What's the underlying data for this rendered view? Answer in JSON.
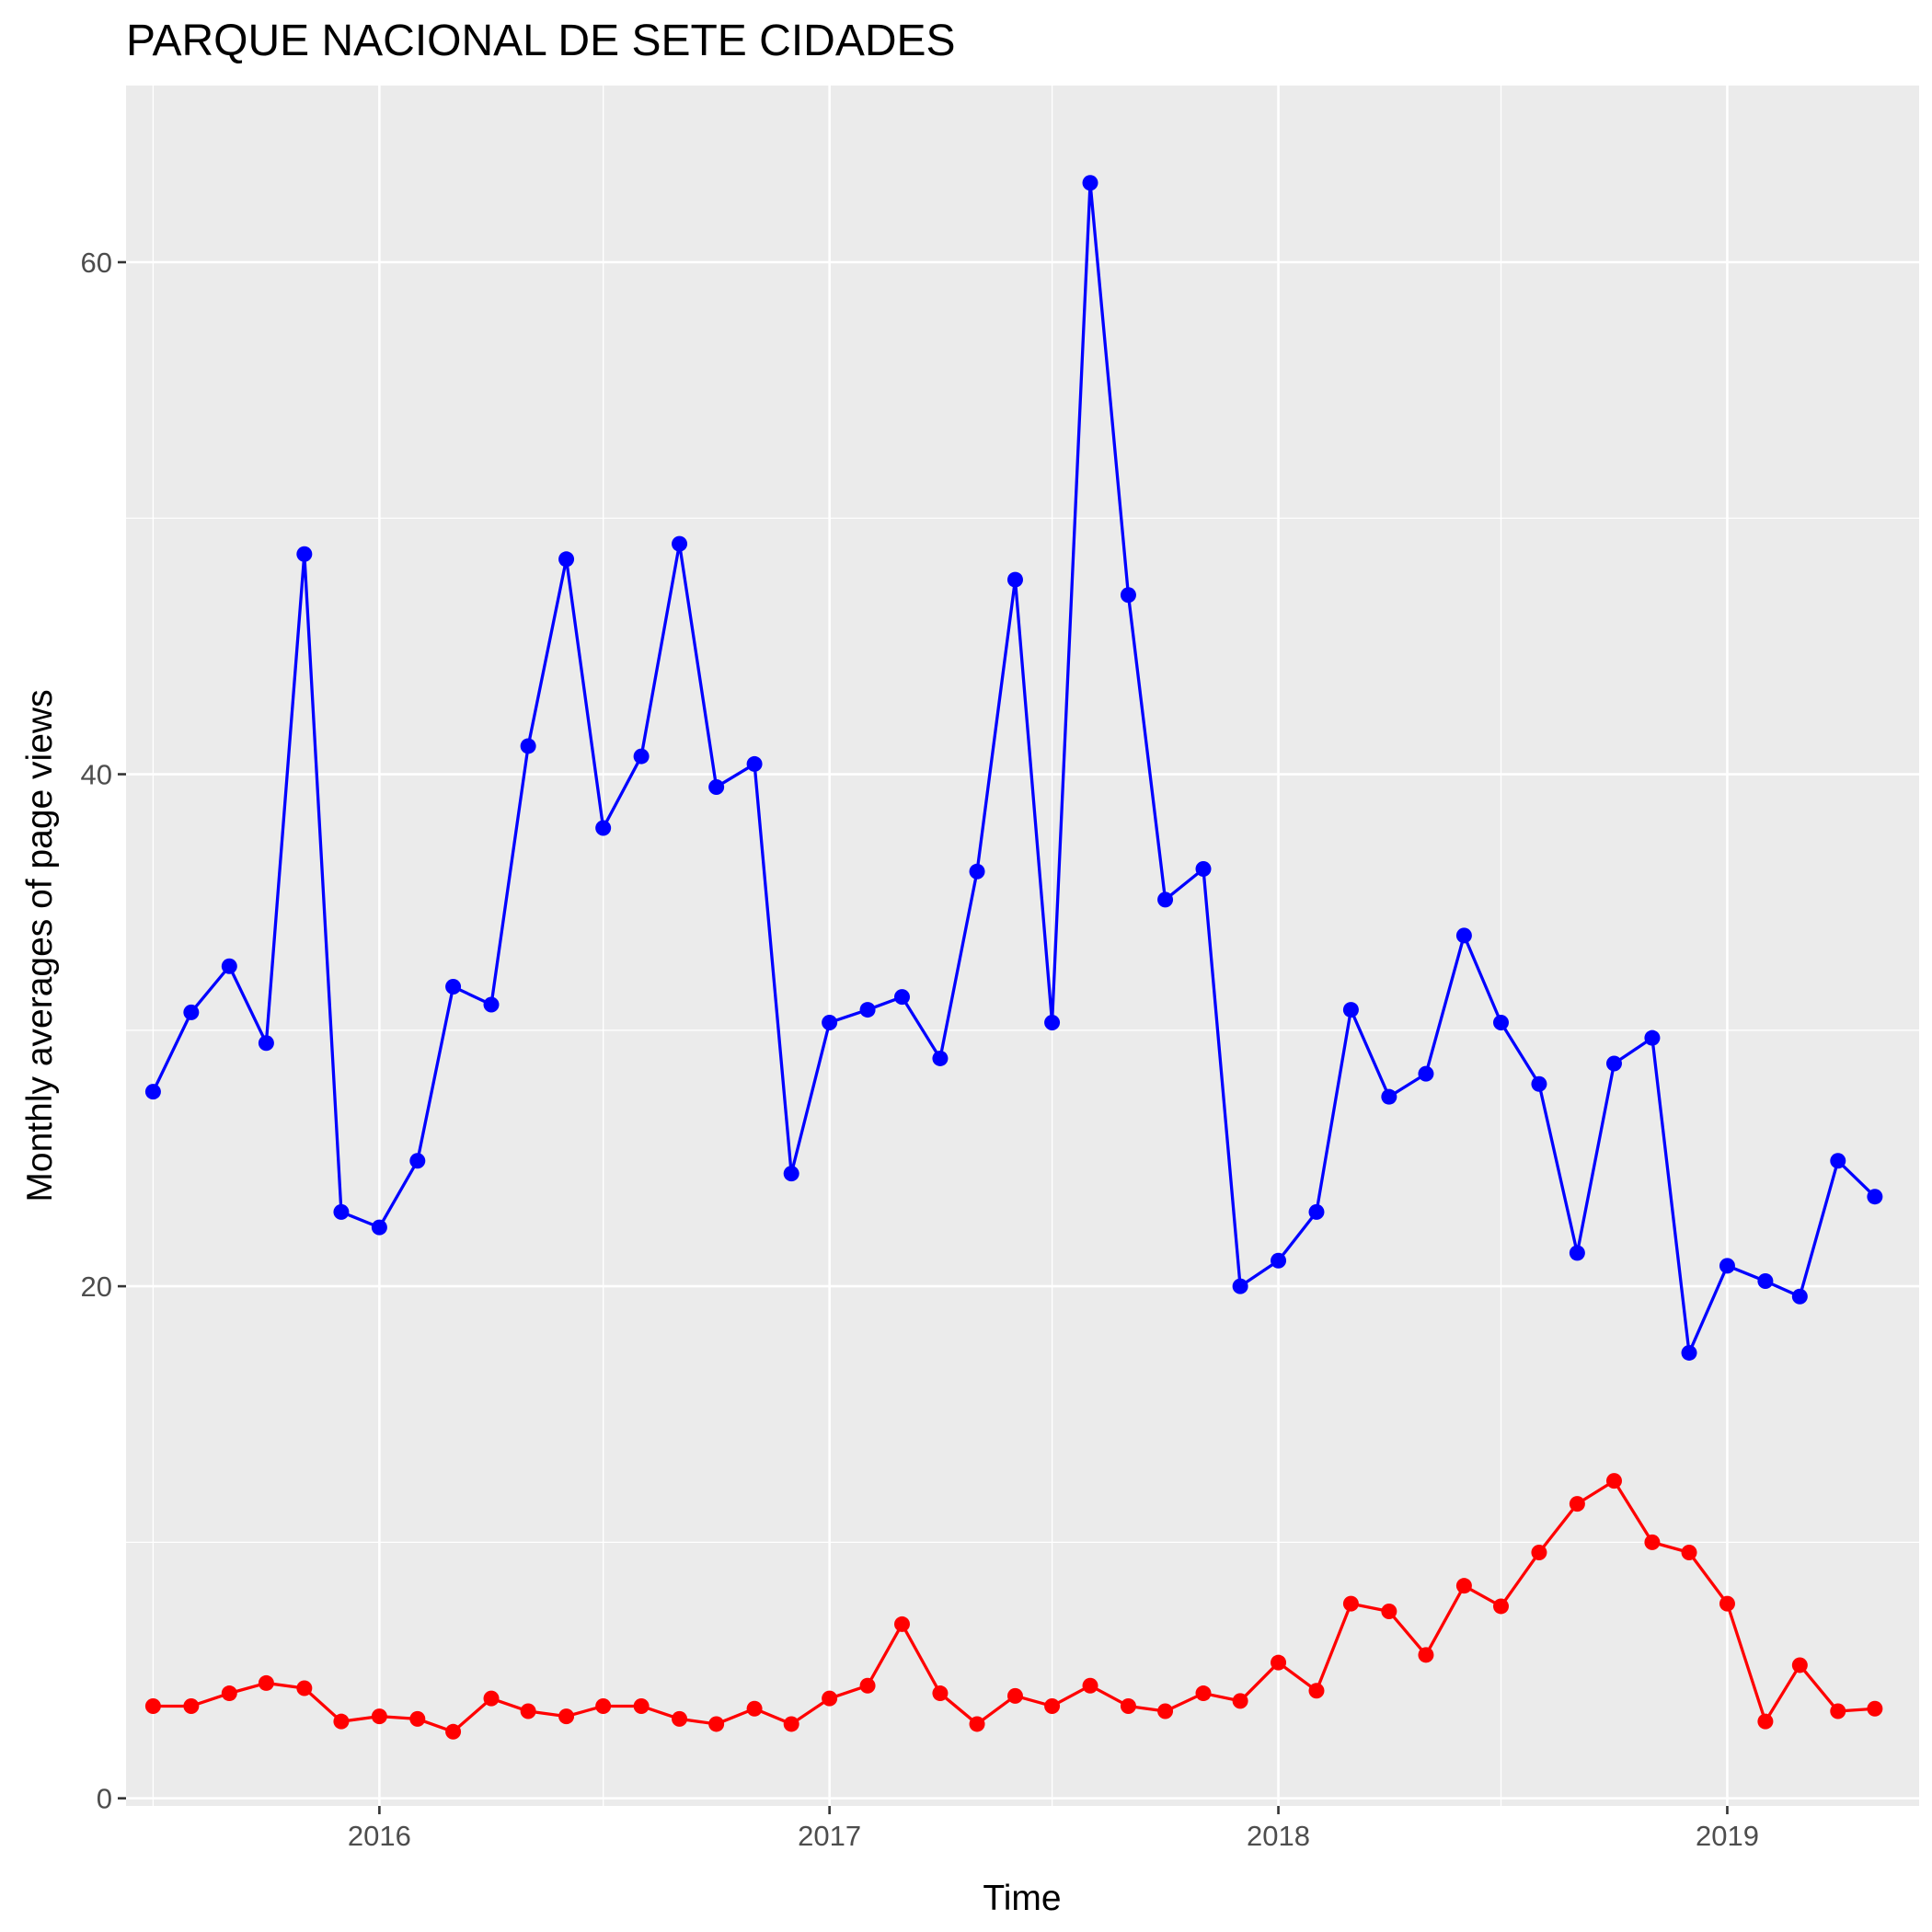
{
  "chart_data": {
    "type": "line",
    "title": "PARQUE NACIONAL DE SETE CIDADES",
    "xlabel": "Time",
    "ylabel": "Monthly averages of page views",
    "xlim": [
      "2015-06-09",
      "2019-06-06"
    ],
    "ylim": [
      -0.3,
      66.9
    ],
    "x_ticks": [
      {
        "date": "2016-01-01",
        "label": "2016"
      },
      {
        "date": "2017-01-01",
        "label": "2017"
      },
      {
        "date": "2018-01-01",
        "label": "2018"
      },
      {
        "date": "2019-01-01",
        "label": "2019"
      }
    ],
    "y_ticks": [
      {
        "value": 0,
        "label": "0"
      },
      {
        "value": 20,
        "label": "20"
      },
      {
        "value": 40,
        "label": "40"
      },
      {
        "value": 60,
        "label": "60"
      }
    ],
    "y_minor_ticks": [
      10,
      30,
      50
    ],
    "grid": true,
    "legend": "none",
    "background": "#ebebeb",
    "gridline_color": "#ffffff",
    "x": [
      "2015-07-01",
      "2015-08-01",
      "2015-09-01",
      "2015-10-01",
      "2015-11-01",
      "2015-12-01",
      "2016-01-01",
      "2016-02-01",
      "2016-03-01",
      "2016-04-01",
      "2016-05-01",
      "2016-06-01",
      "2016-07-01",
      "2016-08-01",
      "2016-09-01",
      "2016-10-01",
      "2016-11-01",
      "2016-12-01",
      "2017-01-01",
      "2017-02-01",
      "2017-03-01",
      "2017-04-01",
      "2017-05-01",
      "2017-06-01",
      "2017-07-01",
      "2017-08-01",
      "2017-09-01",
      "2017-10-01",
      "2017-11-01",
      "2017-12-01",
      "2018-01-01",
      "2018-02-01",
      "2018-03-01",
      "2018-04-01",
      "2018-05-01",
      "2018-06-01",
      "2018-07-01",
      "2018-08-01",
      "2018-09-01",
      "2018-10-01",
      "2018-11-01",
      "2018-12-01",
      "2019-01-01",
      "2019-02-01",
      "2019-03-01",
      "2019-04-01",
      "2019-05-01"
    ],
    "series": [
      {
        "color": "#0000ff",
        "values": [
          27.6,
          30.7,
          32.5,
          29.5,
          48.6,
          22.9,
          22.3,
          24.9,
          31.7,
          31.0,
          41.1,
          48.4,
          37.9,
          40.7,
          49.0,
          39.5,
          40.4,
          24.4,
          30.3,
          30.8,
          31.3,
          28.9,
          36.2,
          47.6,
          30.3,
          63.1,
          47.0,
          35.1,
          36.3,
          20.0,
          21.0,
          22.9,
          30.8,
          27.4,
          28.3,
          33.7,
          30.3,
          27.9,
          21.3,
          28.7,
          29.7,
          17.4,
          20.8,
          20.2,
          19.6,
          24.9,
          23.5
        ]
      },
      {
        "color": "#ff0000",
        "values": [
          3.6,
          3.6,
          4.1,
          4.5,
          4.3,
          3.0,
          3.2,
          3.1,
          2.6,
          3.9,
          3.4,
          3.2,
          3.6,
          3.6,
          3.1,
          2.9,
          3.5,
          2.9,
          3.9,
          4.4,
          6.8,
          4.1,
          2.9,
          4.0,
          3.6,
          4.4,
          3.6,
          3.4,
          4.1,
          3.8,
          5.3,
          4.2,
          7.6,
          7.3,
          5.6,
          8.3,
          7.5,
          9.6,
          11.5,
          12.4,
          10.0,
          9.6,
          7.6,
          3.0,
          5.2,
          3.4,
          3.5
        ]
      }
    ]
  }
}
